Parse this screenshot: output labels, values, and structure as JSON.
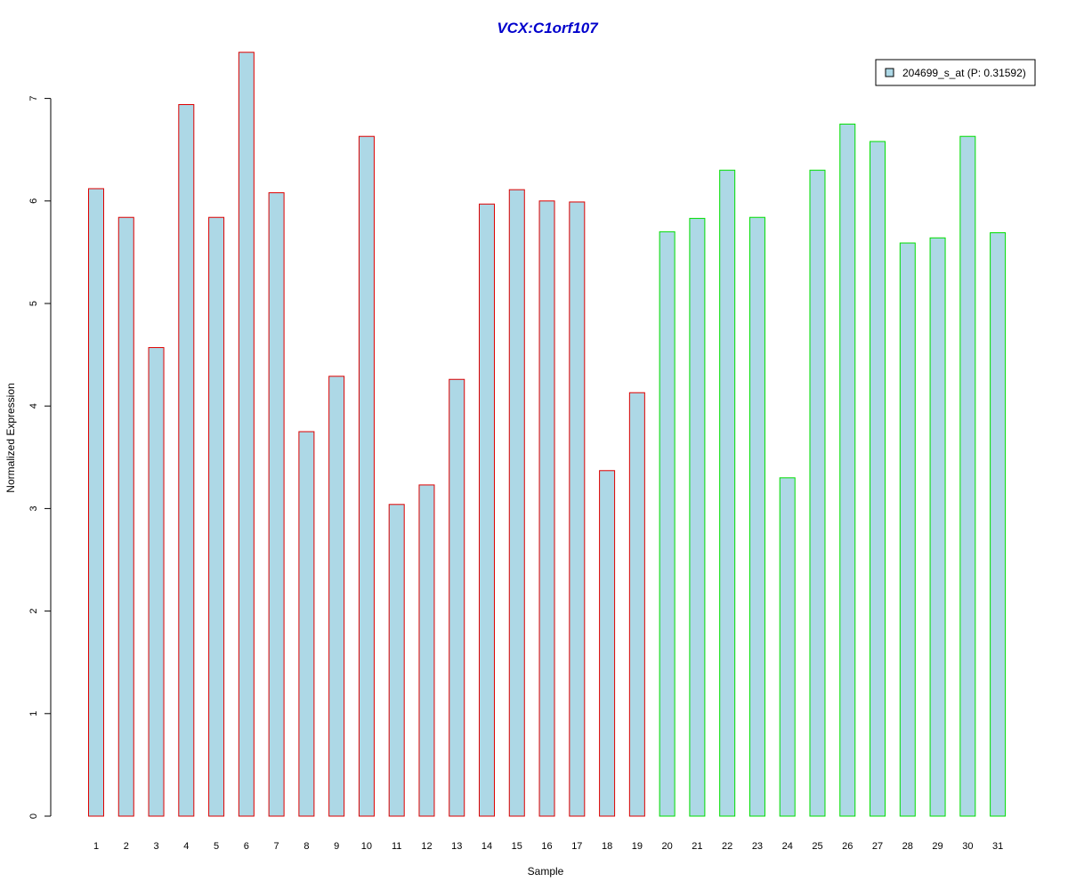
{
  "chart_data": {
    "type": "bar",
    "title": "VCX:C1orf107",
    "xlabel": "Sample",
    "ylabel": "Normalized Expression",
    "categories": [
      "1",
      "2",
      "3",
      "4",
      "5",
      "6",
      "7",
      "8",
      "9",
      "10",
      "11",
      "12",
      "13",
      "14",
      "15",
      "16",
      "17",
      "18",
      "19",
      "20",
      "21",
      "22",
      "23",
      "24",
      "25",
      "26",
      "27",
      "28",
      "29",
      "30",
      "31"
    ],
    "series": [
      {
        "name": "204699_s_at (P: 0.31592)",
        "values": [
          6.12,
          5.84,
          4.57,
          6.94,
          5.84,
          7.45,
          6.08,
          3.75,
          4.29,
          6.63,
          3.04,
          3.23,
          4.26,
          5.97,
          6.11,
          6.0,
          5.99,
          3.37,
          4.13,
          5.7,
          5.83,
          6.3,
          5.84,
          3.3,
          6.3,
          6.75,
          6.58,
          5.59,
          5.64,
          6.63,
          5.69
        ]
      }
    ],
    "group_a_count": 19,
    "ylim": [
      0,
      7
    ],
    "yticks": [
      "0",
      "1",
      "2",
      "3",
      "4",
      "5",
      "6",
      "7"
    ],
    "legend_placement": "top-right",
    "grid": false,
    "colors": {
      "title": "#0000cc",
      "bar_fill": "#add8e6",
      "group_a_border": "#dd0000",
      "group_b_border": "#00dd00",
      "axis": "#000000"
    }
  }
}
